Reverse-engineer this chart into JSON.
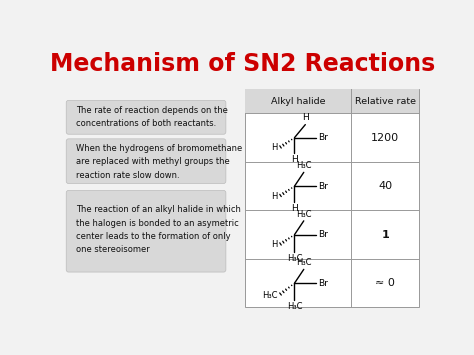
{
  "title": "Mechanism of SN2 Reactions",
  "title_color": "#cc0000",
  "background_color": "#f0f0f0",
  "slide_bg": "#f0f0f0",
  "left_texts": [
    "The rate of reaction depends on the\nconcentrations of both reactants.",
    "When the hydrogens of bromomethane\nare replaced with methyl groups the\nreaction rate slow down.",
    "The reaction of an alkyl halide in which\nthe halogen is bonded to an asymetric\ncenter leads to the formation of only\none stereoisomer"
  ],
  "table_header": [
    "Alkyl halide",
    "Relative rate"
  ],
  "relative_rates": [
    "1200",
    "40",
    "1",
    "≈ 0"
  ],
  "table_border": "#999999",
  "header_bg": "#d8d8d8",
  "left_box_bg": "#d8d8d8"
}
